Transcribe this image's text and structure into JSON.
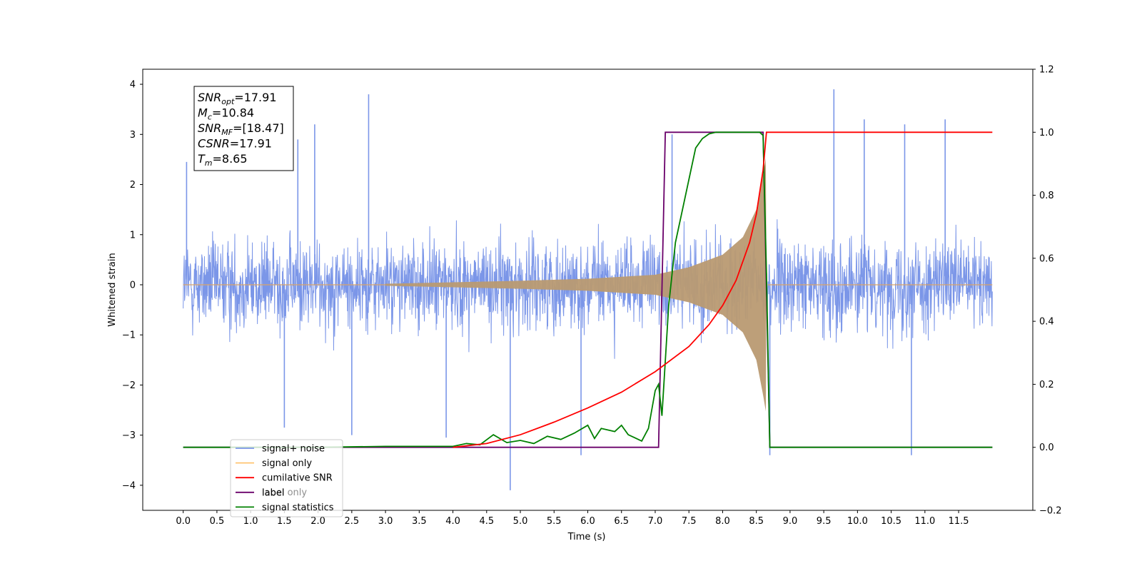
{
  "chart_data": {
    "type": "line",
    "xlabel": "Time (s)",
    "ylabel_left": "Whitened strain",
    "ylabel_right": "",
    "xlim": [
      -0.6,
      12.6
    ],
    "ylim_left": [
      -4.5,
      4.3
    ],
    "ylim_right": [
      -0.2,
      1.2
    ],
    "x_ticks": [
      "0.0",
      "0.5",
      "1.0",
      "1.5",
      "2.0",
      "2.5",
      "3.0",
      "3.5",
      "4.0",
      "4.5",
      "5.0",
      "5.5",
      "6.0",
      "6.5",
      "7.0",
      "7.5",
      "8.0",
      "8.5",
      "9.0",
      "9.5",
      "10.0",
      "10.5",
      "11.0",
      "11.5"
    ],
    "y_ticks_left": [
      "4",
      "3",
      "2",
      "1",
      "0",
      "−1",
      "−2",
      "−3",
      "−4"
    ],
    "y_ticks_right": [
      "1.2",
      "1.0",
      "0.8",
      "0.6",
      "0.4",
      "0.2",
      "0.0",
      "−0.2"
    ],
    "grid": false,
    "legend_position": "lower-left",
    "colors": {
      "noise": "#7b96e8",
      "signal": "#ffb347",
      "cumulative": "#ff0000",
      "label": "#6a006a",
      "statistics": "#008000"
    },
    "series": [
      {
        "name": "signal+ noise",
        "axis": "left",
        "style": "noise-band",
        "x_range": [
          0.0,
          12.0
        ],
        "envelope": {
          "lower": -2.0,
          "upper": 2.2
        },
        "spikes": [
          {
            "x": 0.05,
            "y": 2.45
          },
          {
            "x": 1.7,
            "y": 2.9
          },
          {
            "x": 1.95,
            "y": 3.2
          },
          {
            "x": 2.75,
            "y": 3.8
          },
          {
            "x": 1.5,
            "y": -2.85
          },
          {
            "x": 2.5,
            "y": -3.0
          },
          {
            "x": 3.9,
            "y": -3.05
          },
          {
            "x": 4.85,
            "y": -4.1
          },
          {
            "x": 5.9,
            "y": -3.4
          },
          {
            "x": 7.25,
            "y": 3.0
          },
          {
            "x": 8.7,
            "y": -3.4
          },
          {
            "x": 9.65,
            "y": 3.9
          },
          {
            "x": 10.1,
            "y": 3.3
          },
          {
            "x": 10.7,
            "y": 3.2
          },
          {
            "x": 10.8,
            "y": -3.4
          },
          {
            "x": 11.3,
            "y": 3.3
          }
        ]
      },
      {
        "name": "signal only",
        "axis": "left",
        "style": "chirp",
        "x_range": [
          0.0,
          12.0
        ],
        "merger_time": 8.65,
        "amplitude_points": [
          [
            0.0,
            0.0
          ],
          [
            3.0,
            0.02
          ],
          [
            4.0,
            0.05
          ],
          [
            5.0,
            0.08
          ],
          [
            6.0,
            0.12
          ],
          [
            7.0,
            0.2
          ],
          [
            7.5,
            0.35
          ],
          [
            8.0,
            0.6
          ],
          [
            8.3,
            0.95
          ],
          [
            8.5,
            1.5
          ],
          [
            8.6,
            2.2
          ],
          [
            8.65,
            2.6
          ]
        ]
      },
      {
        "name": "cumilative SNR",
        "axis": "right",
        "x": [
          4.0,
          4.5,
          5.0,
          5.5,
          6.0,
          6.5,
          7.0,
          7.5,
          7.8,
          8.0,
          8.2,
          8.4,
          8.5,
          8.6,
          8.65,
          8.66,
          12.0
        ],
        "y": [
          0.0,
          0.012,
          0.04,
          0.08,
          0.125,
          0.175,
          0.24,
          0.32,
          0.39,
          0.45,
          0.53,
          0.65,
          0.74,
          0.88,
          1.0,
          1.0,
          1.0
        ]
      },
      {
        "name": "label",
        "axis": "right",
        "x": [
          0.0,
          7.05,
          7.15,
          8.6,
          8.7,
          12.0
        ],
        "y": [
          0.0,
          0.0,
          1.0,
          1.0,
          0.0,
          0.0
        ]
      },
      {
        "name": "signal statistics",
        "axis": "right",
        "x": [
          0.0,
          2.0,
          3.0,
          4.0,
          4.2,
          4.4,
          4.6,
          4.8,
          5.0,
          5.2,
          5.4,
          5.6,
          5.8,
          6.0,
          6.1,
          6.2,
          6.4,
          6.5,
          6.6,
          6.7,
          6.8,
          6.9,
          7.0,
          7.05,
          7.1,
          7.2,
          7.3,
          7.4,
          7.5,
          7.6,
          7.7,
          7.8,
          7.9,
          8.0,
          8.2,
          8.4,
          8.55,
          8.6,
          8.65,
          8.7,
          9.0,
          12.0
        ],
        "y": [
          0.0,
          0.0,
          0.003,
          0.003,
          0.012,
          0.008,
          0.04,
          0.015,
          0.022,
          0.012,
          0.035,
          0.025,
          0.045,
          0.07,
          0.028,
          0.06,
          0.05,
          0.07,
          0.04,
          0.03,
          0.02,
          0.06,
          0.18,
          0.2,
          0.1,
          0.45,
          0.65,
          0.75,
          0.85,
          0.95,
          0.98,
          0.995,
          1.0,
          1.0,
          1.0,
          1.0,
          1.0,
          0.99,
          0.55,
          0.0,
          0.0,
          0.0
        ]
      }
    ],
    "annotation_lines": [
      {
        "base": "SNR",
        "sub": "opt",
        "value": "=17.91"
      },
      {
        "base": "M",
        "sub": "c",
        "value": "=10.84"
      },
      {
        "base": "SNR",
        "sub": "MF",
        "value": "=[18.47]"
      },
      {
        "base": "CSNR",
        "sub": "",
        "value": "=17.91"
      },
      {
        "base": "T",
        "sub": "m",
        "value": "=8.65"
      }
    ],
    "legend": [
      "signal+ noise",
      "signal only",
      "cumilative SNR",
      "label",
      "signal statistics"
    ],
    "legend_overlay_text": "label only"
  }
}
